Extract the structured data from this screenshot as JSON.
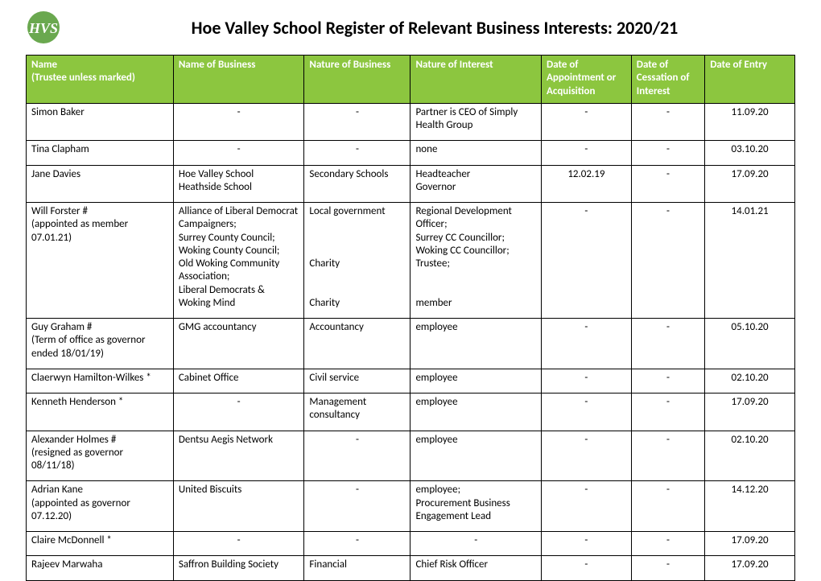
{
  "colors": {
    "header_bg": "#8cc63f",
    "header_fg": "#ffffff",
    "border": "#000000",
    "page_bg": "#ffffff",
    "logo_green": "#6aa84f"
  },
  "title": "Hoe Valley School Register of Relevant Business Interests: 2020/21",
  "columns": [
    "Name\n(Trustee unless marked)",
    "Name of Business",
    "Nature of Business",
    "Nature of Interest",
    "Date of Appointment or Acquisition",
    "Date of Cessation of Interest",
    "Date of Entry"
  ],
  "column_align": [
    "left",
    "left",
    "left",
    "left",
    "center",
    "center",
    "center"
  ],
  "rows": [
    {
      "name": "Simon Baker",
      "business": "-",
      "nature": "-",
      "interest": "Partner is CEO of Simply Health Group",
      "appointment": "-",
      "cessation": "-",
      "entry": "11.09.20",
      "center_biz": true,
      "center_nature": true
    },
    {
      "name": "Tina Clapham",
      "business": "-",
      "nature": "-",
      "interest": "none",
      "appointment": "-",
      "cessation": "-",
      "entry": "03.10.20",
      "center_biz": true,
      "center_nature": true
    },
    {
      "name": "Jane Davies",
      "business": "Hoe Valley School\nHeathside School",
      "nature": "Secondary Schools",
      "interest": "Headteacher\nGovernor",
      "appointment": "12.02.19",
      "cessation": "-",
      "entry": "17.09.20"
    },
    {
      "name": "Will Forster #\n(appointed as member 07.01.21)",
      "business": "Alliance of Liberal Democrat Campaigners;\nSurrey County Council;\nWoking County Council;\nOld Woking Community Association;\nLiberal Democrats & Woking Mind",
      "nature": "Local government\n\n\n\nCharity\n\n\nCharity",
      "interest": "Regional Development Officer;\nSurrey CC Councillor;\nWoking CC Councillor;\nTrustee;\n\n\nmember",
      "appointment": "-",
      "cessation": "-",
      "entry": "14.01.21"
    },
    {
      "name": "Guy Graham #\n(Term of office as governor ended 18/01/19)",
      "business": "GMG accountancy",
      "nature": "Accountancy",
      "interest": "employee",
      "appointment": "-",
      "cessation": "-",
      "entry": "05.10.20"
    },
    {
      "name": "Claerwyn Hamilton-Wilkes *",
      "business": "Cabinet Office",
      "nature": "Civil service",
      "interest": "employee",
      "appointment": "-",
      "cessation": "-",
      "entry": "02.10.20"
    },
    {
      "name": "Kenneth Henderson *",
      "business": "-",
      "nature": "Management consultancy",
      "interest": "employee",
      "appointment": "-",
      "cessation": "-",
      "entry": "17.09.20",
      "center_biz": true
    },
    {
      "name": "Alexander Holmes #\n(resigned as governor 08/11/18)",
      "business": "Dentsu Aegis Network",
      "nature": "-",
      "interest": "employee",
      "appointment": "-",
      "cessation": "-",
      "entry": "02.10.20",
      "center_nature": true
    },
    {
      "name": "Adrian Kane\n(appointed as governor 07.12.20)",
      "business": "United Biscuits",
      "nature": "-",
      "interest": "employee;\nProcurement Business Engagement Lead",
      "appointment": "-",
      "cessation": "-",
      "entry": "14.12.20",
      "center_nature": true
    },
    {
      "name": "Claire McDonnell *",
      "business": "-",
      "nature": "-",
      "interest": "-",
      "appointment": "-",
      "cessation": "-",
      "entry": "17.09.20",
      "center_biz": true,
      "center_nature": true,
      "center_int": true
    },
    {
      "name": "Rajeev Marwaha",
      "business": "Saffron Building Society",
      "nature": "Financial",
      "interest": "Chief Risk Officer",
      "appointment": "-",
      "cessation": "-",
      "entry": "17.09.20"
    }
  ]
}
